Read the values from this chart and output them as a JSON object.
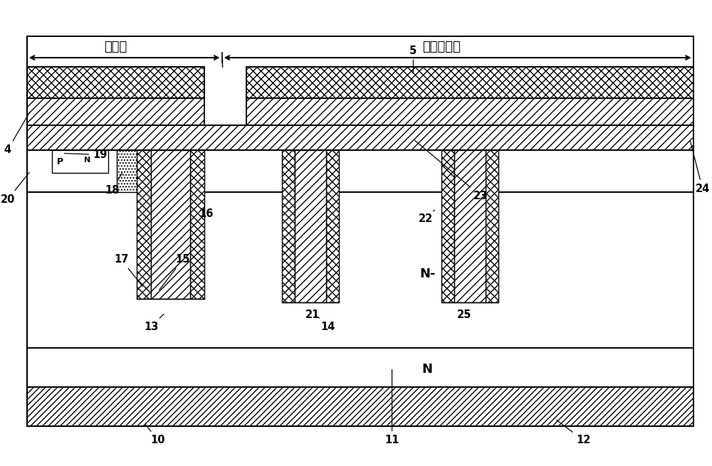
{
  "fig_w": 10.0,
  "fig_h": 6.55,
  "dpi": 100,
  "bg": "#ffffff",
  "lw_main": 1.4,
  "lw_thin": 1.0,
  "active_label": "有源区",
  "protect_label": "耐压保护区",
  "Nminus_label": "N-",
  "N_label": "N",
  "note_labels": [
    "4",
    "5",
    "10",
    "11",
    "12",
    "13",
    "14",
    "15",
    "16",
    "17",
    "18",
    "19",
    "20",
    "21",
    "22",
    "23",
    "24",
    "25"
  ],
  "P_label": "P",
  "N_src_label": "N"
}
